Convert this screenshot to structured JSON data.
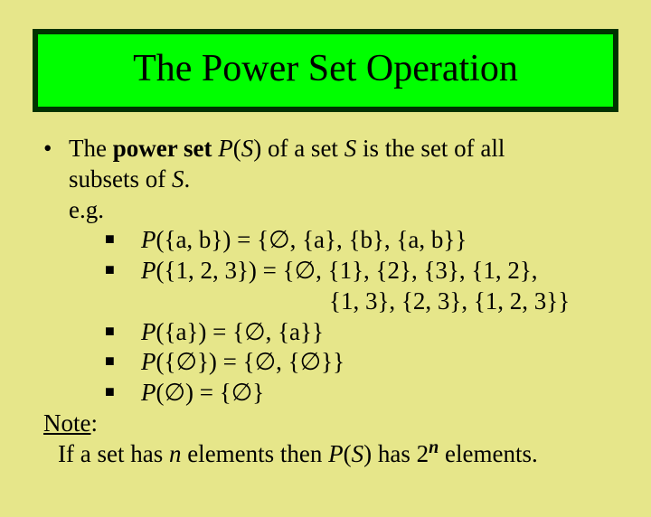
{
  "title": "The Power Set Operation",
  "intro": {
    "l1_pre": "The ",
    "l1_bold": "power set",
    "l1_mid": " ",
    "l1_PS": "P",
    "l1_par_open": "(",
    "l1_S1": "S",
    "l1_par_close_of": ") of a set ",
    "l1_S2": "S",
    "l1_after": " is the set of all",
    "l2": "subsets of ",
    "l2_S": "S",
    "l2_dot": "."
  },
  "eg_label": "e.g.",
  "examples": {
    "r1_P": "P",
    "r1_rest": "({a, b}) = {∅, {a}, {b}, {a, b}}",
    "r2_P": "P",
    "r2_rest": "({1, 2, 3}) = {∅, {1}, {2}, {3}, {1, 2},",
    "r2b": "{1, 3}, {2, 3}, {1, 2, 3}}",
    "r3_P": "P",
    "r3_rest": "({a}) = {∅, {a}}",
    "r4_P": "P",
    "r4_rest": "({∅}) = {∅, {∅}}",
    "r5_P": "P",
    "r5_rest": "(∅) = {∅}"
  },
  "note": {
    "label": "Note",
    "colon": ":",
    "text_pre": "If a set has ",
    "n1": "n",
    "text_mid": " elements then ",
    "PS_P": "P",
    "PS_open": "(",
    "PS_S": "S",
    "PS_close": ")",
    "text_has": " has 2",
    "exp": "n",
    "text_end": " elements."
  },
  "bullet_main": "•",
  "bullet_sub": "■"
}
